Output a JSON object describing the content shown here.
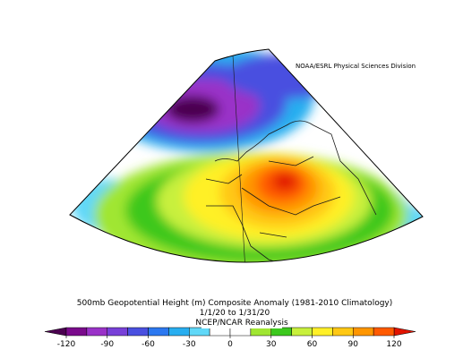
{
  "credit": "NOAA/ESRL Physical Sciences Division",
  "title": "500mb Geopotential Height (m) Composite Anomaly (1981-2010 Climatology)",
  "period": "1/1/20  to 1/31/20",
  "source": "NCEP/NCAR Reanalysis",
  "colorbar": {
    "ticks": [
      -120,
      -90,
      -60,
      -30,
      0,
      30,
      60,
      90,
      120
    ],
    "colors": [
      "#4b0050",
      "#7a0a8c",
      "#9a32c8",
      "#7840d8",
      "#4a50e0",
      "#2c78f0",
      "#28aef0",
      "#60d8f8",
      "#ffffff",
      "#ffffff",
      "#a0e632",
      "#3cc81e",
      "#c8f03c",
      "#fff028",
      "#ffc814",
      "#ff9600",
      "#ff5a00",
      "#e11400"
    ]
  }
}
